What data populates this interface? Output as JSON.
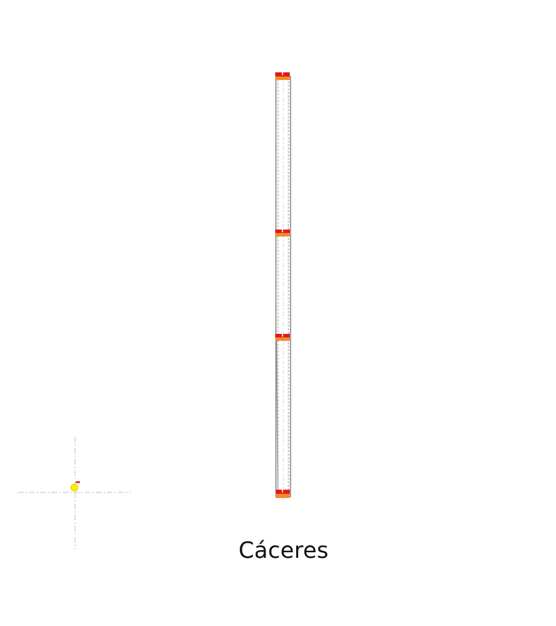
{
  "caption": "Cáceres",
  "colors": {
    "background": "#ffffff",
    "track_stroke": "#7a7a7a",
    "track_fill": "#ffffff",
    "center_dash": "#d9d9d9",
    "marker_top": "#e31a1c",
    "marker_base": "#f28c28",
    "cursor_fill": "#ffee00",
    "cursor_flag": "#e31a1c",
    "crosshair": "#cccccc",
    "caption_text": "#111111"
  },
  "markers": [
    {
      "name": "marker-top"
    },
    {
      "name": "marker-upper-middle"
    },
    {
      "name": "marker-lower-middle"
    },
    {
      "name": "marker-bottom"
    }
  ]
}
